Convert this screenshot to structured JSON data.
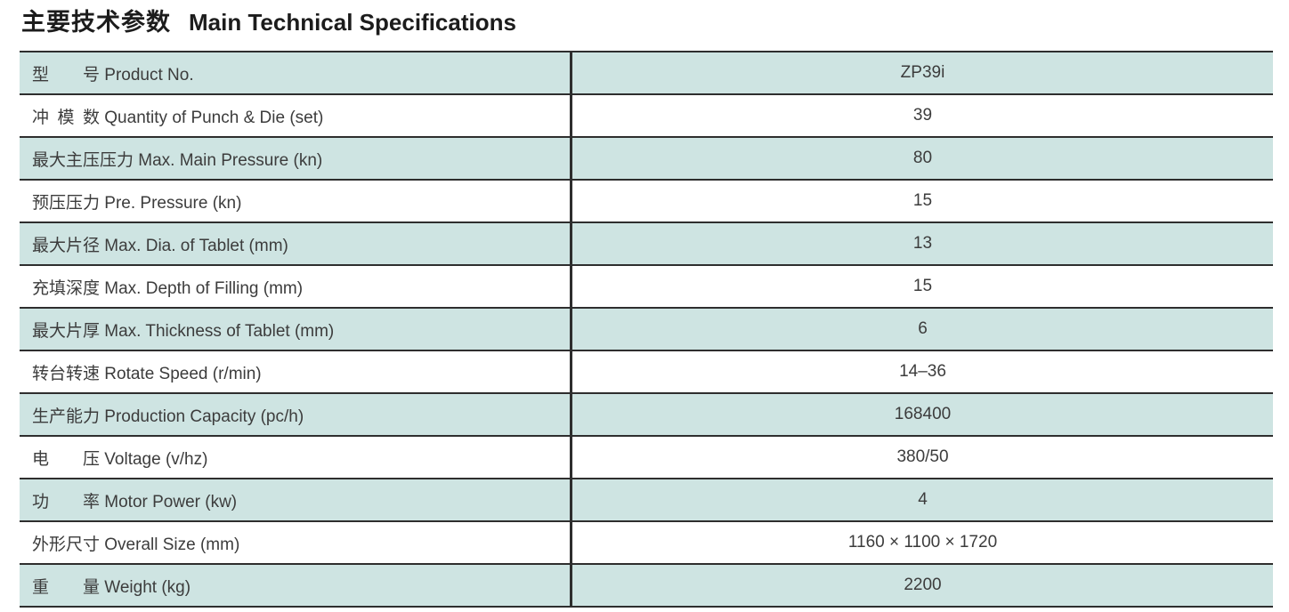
{
  "title": {
    "zh": "主要技术参数",
    "en": "Main Technical Specifications"
  },
  "colors": {
    "row_shaded": "#cee4e2",
    "row_plain": "#ffffff",
    "border": "#2e2e2e",
    "text": "#3c3c3c",
    "title_text": "#1c1c1c"
  },
  "table": {
    "rows": [
      {
        "label": "型　　号 Product No.",
        "value": "ZP39i",
        "shaded": true
      },
      {
        "label": "冲 模 数 Quantity of Punch & Die (set)",
        "value": "39",
        "shaded": false
      },
      {
        "label": "最大主压压力 Max. Main Pressure (kn)",
        "value": "80",
        "shaded": true
      },
      {
        "label": "预压压力 Pre. Pressure (kn)",
        "value": "15",
        "shaded": false
      },
      {
        "label": "最大片径 Max. Dia. of Tablet (mm)",
        "value": "13",
        "shaded": true
      },
      {
        "label": "充填深度 Max. Depth of Filling (mm)",
        "value": "15",
        "shaded": false
      },
      {
        "label": "最大片厚 Max. Thickness of Tablet (mm)",
        "value": "6",
        "shaded": true
      },
      {
        "label": "转台转速 Rotate Speed (r/min)",
        "value": "14–36",
        "shaded": false
      },
      {
        "label": "生产能力 Production Capacity (pc/h)",
        "value": "168400",
        "shaded": true
      },
      {
        "label": "电　　压 Voltage (v/hz)",
        "value": "380/50",
        "shaded": false
      },
      {
        "label": "功　　率 Motor Power (kw)",
        "value": "4",
        "shaded": true
      },
      {
        "label": "外形尺寸 Overall Size (mm)",
        "value": "1160 × 1100 × 1720",
        "shaded": false
      },
      {
        "label": "重　　量 Weight (kg)",
        "value": "2200",
        "shaded": true
      }
    ]
  }
}
